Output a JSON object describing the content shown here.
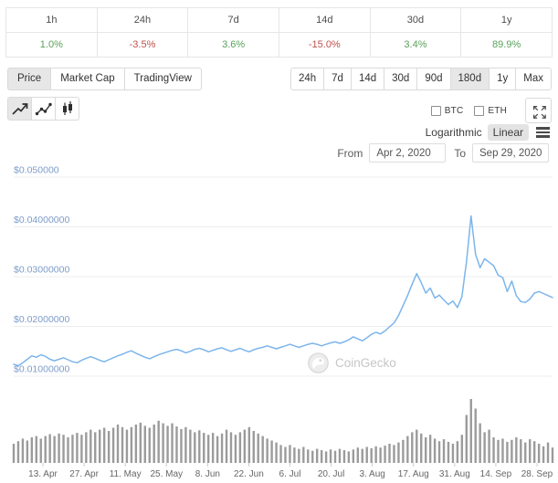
{
  "perf_table": {
    "periods": [
      "1h",
      "24h",
      "7d",
      "14d",
      "30d",
      "1y"
    ],
    "changes": [
      {
        "value": "1.0%",
        "direction": "up"
      },
      {
        "value": "-3.5%",
        "direction": "down"
      },
      {
        "value": "3.6%",
        "direction": "up"
      },
      {
        "value": "-15.0%",
        "direction": "down"
      },
      {
        "value": "3.4%",
        "direction": "up"
      },
      {
        "value": "89.9%",
        "direction": "up"
      }
    ],
    "colors": {
      "up": "#5aa05a",
      "down": "#c0504d"
    }
  },
  "tabs": {
    "items": [
      {
        "label": "Price",
        "active": true
      },
      {
        "label": "Market Cap",
        "active": false
      },
      {
        "label": "TradingView",
        "active": false
      }
    ]
  },
  "ranges": {
    "items": [
      {
        "label": "24h",
        "active": false
      },
      {
        "label": "7d",
        "active": false
      },
      {
        "label": "14d",
        "active": false
      },
      {
        "label": "30d",
        "active": false
      },
      {
        "label": "90d",
        "active": false
      },
      {
        "label": "180d",
        "active": true
      },
      {
        "label": "1y",
        "active": false
      },
      {
        "label": "Max",
        "active": false
      }
    ]
  },
  "chart_type_buttons": [
    {
      "name": "line-chart",
      "active": true
    },
    {
      "name": "dotted-line-chart",
      "active": false
    },
    {
      "name": "candlestick-chart",
      "active": false
    }
  ],
  "overlays": {
    "btc_label": "BTC",
    "btc_checked": false,
    "eth_label": "ETH",
    "eth_checked": false
  },
  "scale_toggle": {
    "logarithmic_label": "Logarithmic",
    "linear_label": "Linear",
    "selected": "Linear"
  },
  "date_range": {
    "from_label": "From",
    "from_value": "Apr 2, 2020",
    "to_label": "To",
    "to_value": "Sep 29, 2020"
  },
  "watermark": {
    "text": "CoinGecko"
  },
  "chart_data": {
    "type": "line",
    "title": "",
    "x_range": {
      "start": "Apr 2, 2020",
      "end": "Sep 29, 2020",
      "span": "180d"
    },
    "x_axis": {
      "tick_labels": [
        "13. Apr",
        "27. Apr",
        "11. May",
        "25. May",
        "8. Jun",
        "22. Jun",
        "6. Jul",
        "20. Jul",
        "3. Aug",
        "17. Aug",
        "31. Aug",
        "14. Sep",
        "28. Sep"
      ],
      "label_color": "#666666"
    },
    "y_axis": {
      "tick_labels": [
        "$0.050000",
        "$0.04000000",
        "$0.03000000",
        "$0.02000000",
        "$0.01000000"
      ],
      "tick_values": [
        0.05,
        0.04,
        0.03,
        0.02,
        0.01
      ],
      "min": 0.01,
      "max": 0.05,
      "unit": "USD",
      "label_color": "#7d9cc9"
    },
    "grid": true,
    "legend": false,
    "series": [
      {
        "name": "price",
        "type": "line",
        "color": "#7cb5ec",
        "values": [
          0.0124,
          0.0121,
          0.0127,
          0.0134,
          0.0141,
          0.0138,
          0.0143,
          0.014,
          0.0134,
          0.0131,
          0.0134,
          0.0137,
          0.0133,
          0.0129,
          0.0127,
          0.0132,
          0.0136,
          0.0139,
          0.0136,
          0.0132,
          0.0129,
          0.0133,
          0.0137,
          0.0141,
          0.0144,
          0.0148,
          0.0151,
          0.0146,
          0.0142,
          0.0138,
          0.0135,
          0.0139,
          0.0143,
          0.0146,
          0.0149,
          0.0152,
          0.0154,
          0.0151,
          0.0147,
          0.015,
          0.0154,
          0.0156,
          0.0153,
          0.0149,
          0.0152,
          0.0155,
          0.0157,
          0.0153,
          0.015,
          0.0153,
          0.0156,
          0.0152,
          0.0149,
          0.0153,
          0.0156,
          0.0158,
          0.0161,
          0.0158,
          0.0155,
          0.0158,
          0.0161,
          0.0164,
          0.0161,
          0.0158,
          0.0161,
          0.0164,
          0.0166,
          0.0164,
          0.0161,
          0.0164,
          0.0167,
          0.0169,
          0.0166,
          0.0169,
          0.0173,
          0.0179,
          0.0175,
          0.0171,
          0.0177,
          0.0184,
          0.0188,
          0.0185,
          0.0191,
          0.0199,
          0.0207,
          0.0222,
          0.0242,
          0.0262,
          0.0285,
          0.0306,
          0.0288,
          0.0267,
          0.0277,
          0.0257,
          0.0263,
          0.0253,
          0.0244,
          0.0251,
          0.0238,
          0.026,
          0.033,
          0.0422,
          0.0345,
          0.0318,
          0.0336,
          0.0329,
          0.0322,
          0.0303,
          0.0298,
          0.027,
          0.0291,
          0.0262,
          0.025,
          0.0248,
          0.0255,
          0.0267,
          0.027,
          0.0266,
          0.0262,
          0.0258
        ]
      },
      {
        "name": "volume",
        "type": "bar",
        "color": "#9b9b9b",
        "values_relative": [
          0.3,
          0.34,
          0.38,
          0.35,
          0.4,
          0.42,
          0.38,
          0.42,
          0.45,
          0.42,
          0.46,
          0.44,
          0.4,
          0.44,
          0.47,
          0.44,
          0.48,
          0.52,
          0.48,
          0.52,
          0.55,
          0.5,
          0.55,
          0.6,
          0.56,
          0.52,
          0.56,
          0.6,
          0.63,
          0.58,
          0.55,
          0.6,
          0.66,
          0.62,
          0.58,
          0.62,
          0.57,
          0.53,
          0.56,
          0.52,
          0.48,
          0.51,
          0.47,
          0.44,
          0.47,
          0.42,
          0.46,
          0.52,
          0.48,
          0.44,
          0.48,
          0.52,
          0.56,
          0.5,
          0.46,
          0.42,
          0.38,
          0.35,
          0.32,
          0.28,
          0.25,
          0.28,
          0.24,
          0.22,
          0.25,
          0.21,
          0.19,
          0.22,
          0.2,
          0.18,
          0.21,
          0.19,
          0.22,
          0.2,
          0.18,
          0.21,
          0.24,
          0.22,
          0.25,
          0.23,
          0.26,
          0.24,
          0.27,
          0.3,
          0.28,
          0.32,
          0.36,
          0.42,
          0.48,
          0.52,
          0.46,
          0.4,
          0.44,
          0.38,
          0.34,
          0.37,
          0.33,
          0.3,
          0.34,
          0.44,
          0.75,
          1.0,
          0.85,
          0.62,
          0.48,
          0.52,
          0.4,
          0.36,
          0.38,
          0.33,
          0.36,
          0.4,
          0.37,
          0.32,
          0.37,
          0.34,
          0.3,
          0.26,
          0.32,
          0.24
        ]
      }
    ]
  }
}
